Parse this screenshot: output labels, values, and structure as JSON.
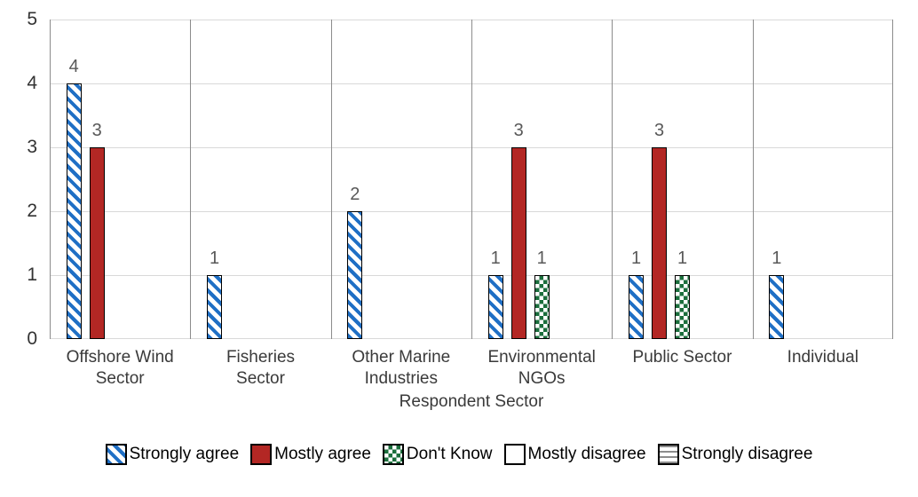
{
  "chart_data": {
    "type": "bar",
    "xlabel": "Respondent Sector",
    "ylim": [
      0,
      5
    ],
    "yticks": [
      0,
      1,
      2,
      3,
      4,
      5
    ],
    "grid": true,
    "legend_position": "bottom",
    "bar_value_labels_shown": true,
    "categories": [
      {
        "label": "Offshore Wind Sector",
        "lines": [
          "Offshore Wind",
          "Sector"
        ]
      },
      {
        "label": "Fisheries Sector",
        "lines": [
          "Fisheries",
          "Sector"
        ]
      },
      {
        "label": "Other Marine Industries",
        "lines": [
          "Other Marine",
          "Industries"
        ]
      },
      {
        "label": "Environmental NGOs",
        "lines": [
          "Environmental",
          "NGOs"
        ]
      },
      {
        "label": "Public Sector",
        "lines": [
          "Public Sector"
        ]
      },
      {
        "label": "Individual",
        "lines": [
          "Individual"
        ]
      }
    ],
    "series": [
      {
        "name": "Strongly agree",
        "pattern": "diag-hatch",
        "color": "#1F6FC5",
        "values": [
          4,
          1,
          2,
          1,
          1,
          1
        ]
      },
      {
        "name": "Mostly agree",
        "pattern": "solid",
        "color": "#B32724",
        "values": [
          3,
          0,
          0,
          3,
          3,
          0
        ]
      },
      {
        "name": "Don't Know",
        "pattern": "checker",
        "color": "#1B6E3C",
        "values": [
          0,
          0,
          0,
          1,
          1,
          0
        ]
      },
      {
        "name": "Mostly disagree",
        "pattern": "plain",
        "color": "#FFFFFF",
        "values": [
          0,
          0,
          0,
          0,
          0,
          0
        ]
      },
      {
        "name": "Strongly disagree",
        "pattern": "horiz-lines",
        "color": "#8C8C8C",
        "values": [
          0,
          0,
          0,
          0,
          0,
          0
        ]
      }
    ],
    "colors": {
      "h_gridline": "#D9D9D9",
      "v_gridline": "#8C8C8C",
      "bar_outline": "#000000",
      "data_label": "#595959",
      "tick_label": "#333333",
      "category_label": "#3A3A3A",
      "legend_text": "#000000",
      "background": "#FFFFFF"
    }
  }
}
